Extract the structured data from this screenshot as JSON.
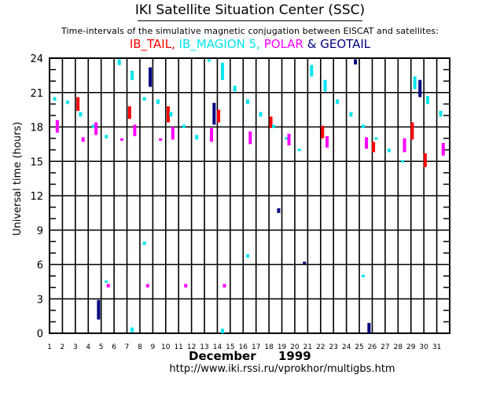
{
  "header": {
    "title": "IKI Satellite Situation Center (SSC)",
    "subtitle": "Time-intervals of the simulative magnetic conjugation between EISCAT and satellites:"
  },
  "legend": {
    "items": [
      {
        "label": "IB_TAIL,",
        "color": "#ff0000"
      },
      {
        "label": "IB_MAGION 5,",
        "color": "#00e5ee"
      },
      {
        "label": "POLAR",
        "color": "#ff00ff"
      },
      {
        "label": "& GEOTAIL",
        "color": "#000080"
      }
    ]
  },
  "footer": {
    "month": "December",
    "year": "1999",
    "url": "http://www.iki.rssi.ru/vprokhor/multigbs.htm"
  },
  "chart_data": {
    "type": "scatter",
    "title": "IKI Satellite Situation Center (SSC)",
    "subtitle": "Time-intervals of the simulative magnetic conjugation between EISCAT and satellites:",
    "xlabel": "December 1999",
    "ylabel": "Universal time (hours)",
    "xlim": [
      1,
      32
    ],
    "ylim": [
      0,
      24
    ],
    "x_ticks": [
      1,
      2,
      3,
      4,
      5,
      6,
      7,
      8,
      9,
      10,
      11,
      12,
      13,
      14,
      15,
      16,
      17,
      18,
      19,
      20,
      21,
      22,
      23,
      24,
      25,
      26,
      27,
      28,
      29,
      30,
      31
    ],
    "y_ticks": [
      0,
      3,
      6,
      9,
      12,
      15,
      18,
      21,
      24
    ],
    "y_major_gridlines": [
      3,
      6,
      9,
      12,
      15,
      18,
      21,
      24
    ],
    "grid": true,
    "legend_position": "top",
    "series": [
      {
        "name": "IB_TAIL",
        "color": "#ff0000",
        "intervals": [
          {
            "day": 3.2,
            "start": 19.4,
            "end": 20.6
          },
          {
            "day": 7.2,
            "start": 18.7,
            "end": 19.8
          },
          {
            "day": 10.2,
            "start": 18.4,
            "end": 19.8
          },
          {
            "day": 14.1,
            "start": 18.4,
            "end": 19.5
          },
          {
            "day": 18.15,
            "start": 17.9,
            "end": 18.9
          },
          {
            "day": 22.15,
            "start": 17.0,
            "end": 18.1
          },
          {
            "day": 26.1,
            "start": 15.8,
            "end": 16.7
          },
          {
            "day": 29.1,
            "start": 16.9,
            "end": 18.4
          },
          {
            "day": 30.1,
            "start": 14.5,
            "end": 15.7
          }
        ]
      },
      {
        "name": "IB_MAGION 5",
        "color": "#00e5ee",
        "intervals": [
          {
            "day": 1.4,
            "start": 20.3,
            "end": 20.6
          },
          {
            "day": 2.4,
            "start": 20.0,
            "end": 20.3
          },
          {
            "day": 3.4,
            "start": 18.9,
            "end": 19.3
          },
          {
            "day": 4.4,
            "start": 17.9,
            "end": 18.2
          },
          {
            "day": 5.4,
            "start": 17.0,
            "end": 17.3
          },
          {
            "day": 5.4,
            "start": 4.4,
            "end": 4.6
          },
          {
            "day": 6.4,
            "start": 23.4,
            "end": 23.9
          },
          {
            "day": 7.4,
            "start": 22.1,
            "end": 22.9
          },
          {
            "day": 7.4,
            "start": 0.1,
            "end": 0.5
          },
          {
            "day": 8.35,
            "start": 20.3,
            "end": 20.6
          },
          {
            "day": 8.35,
            "start": 7.7,
            "end": 8.0
          },
          {
            "day": 9.4,
            "start": 20.0,
            "end": 20.4
          },
          {
            "day": 10.4,
            "start": 18.9,
            "end": 19.3
          },
          {
            "day": 11.4,
            "start": 17.9,
            "end": 18.2
          },
          {
            "day": 12.4,
            "start": 16.9,
            "end": 17.3
          },
          {
            "day": 13.35,
            "start": 23.7,
            "end": 23.9
          },
          {
            "day": 14.4,
            "start": 22.1,
            "end": 23.6
          },
          {
            "day": 14.4,
            "start": 0.0,
            "end": 0.4
          },
          {
            "day": 15.35,
            "start": 21.1,
            "end": 21.6
          },
          {
            "day": 16.35,
            "start": 20.0,
            "end": 20.4
          },
          {
            "day": 16.35,
            "start": 6.6,
            "end": 6.9
          },
          {
            "day": 17.35,
            "start": 18.9,
            "end": 19.3
          },
          {
            "day": 18.35,
            "start": 17.9,
            "end": 18.2
          },
          {
            "day": 19.35,
            "start": 16.9,
            "end": 17.1
          },
          {
            "day": 20.35,
            "start": 15.9,
            "end": 16.1
          },
          {
            "day": 21.3,
            "start": 22.4,
            "end": 23.4
          },
          {
            "day": 22.35,
            "start": 21.1,
            "end": 22.1
          },
          {
            "day": 23.3,
            "start": 20.0,
            "end": 20.4
          },
          {
            "day": 24.35,
            "start": 18.9,
            "end": 19.3
          },
          {
            "day": 25.3,
            "start": 17.9,
            "end": 18.2
          },
          {
            "day": 25.3,
            "start": 4.9,
            "end": 5.1
          },
          {
            "day": 26.3,
            "start": 16.9,
            "end": 17.1
          },
          {
            "day": 27.3,
            "start": 15.8,
            "end": 16.1
          },
          {
            "day": 28.35,
            "start": 14.9,
            "end": 15.1
          },
          {
            "day": 29.3,
            "start": 21.3,
            "end": 22.4
          },
          {
            "day": 30.3,
            "start": 20.0,
            "end": 20.7
          },
          {
            "day": 31.3,
            "start": 18.9,
            "end": 19.4
          }
        ]
      },
      {
        "name": "POLAR",
        "color": "#ff00ff",
        "intervals": [
          {
            "day": 1.6,
            "start": 17.5,
            "end": 18.6
          },
          {
            "day": 3.6,
            "start": 16.7,
            "end": 17.1
          },
          {
            "day": 4.6,
            "start": 17.3,
            "end": 18.4
          },
          {
            "day": 5.55,
            "start": 4.0,
            "end": 4.3
          },
          {
            "day": 6.6,
            "start": 16.9,
            "end": 17.0
          },
          {
            "day": 7.6,
            "start": 17.2,
            "end": 18.2
          },
          {
            "day": 8.6,
            "start": 4.0,
            "end": 4.3
          },
          {
            "day": 9.6,
            "start": 16.9,
            "end": 17.0
          },
          {
            "day": 10.55,
            "start": 16.9,
            "end": 18.0
          },
          {
            "day": 11.55,
            "start": 4.0,
            "end": 4.3
          },
          {
            "day": 13.55,
            "start": 16.7,
            "end": 17.9
          },
          {
            "day": 14.55,
            "start": 4.0,
            "end": 4.3
          },
          {
            "day": 16.55,
            "start": 16.5,
            "end": 17.6
          },
          {
            "day": 19.55,
            "start": 16.4,
            "end": 17.4
          },
          {
            "day": 22.5,
            "start": 16.2,
            "end": 17.2
          },
          {
            "day": 25.55,
            "start": 16.1,
            "end": 17.1
          },
          {
            "day": 28.5,
            "start": 15.8,
            "end": 17.0
          },
          {
            "day": 31.5,
            "start": 15.5,
            "end": 16.6
          }
        ]
      },
      {
        "name": "GEOTAIL",
        "color": "#000080",
        "intervals": [
          {
            "day": 4.8,
            "start": 1.2,
            "end": 2.9
          },
          {
            "day": 8.8,
            "start": 21.5,
            "end": 23.2
          },
          {
            "day": 13.75,
            "start": 18.2,
            "end": 20.1
          },
          {
            "day": 18.75,
            "start": 10.5,
            "end": 10.9
          },
          {
            "day": 20.75,
            "start": 6.1,
            "end": 6.25
          },
          {
            "day": 24.7,
            "start": 23.45,
            "end": 23.9
          },
          {
            "day": 25.75,
            "start": 0.0,
            "end": 0.9
          },
          {
            "day": 29.7,
            "start": 20.6,
            "end": 22.1
          }
        ]
      }
    ]
  }
}
